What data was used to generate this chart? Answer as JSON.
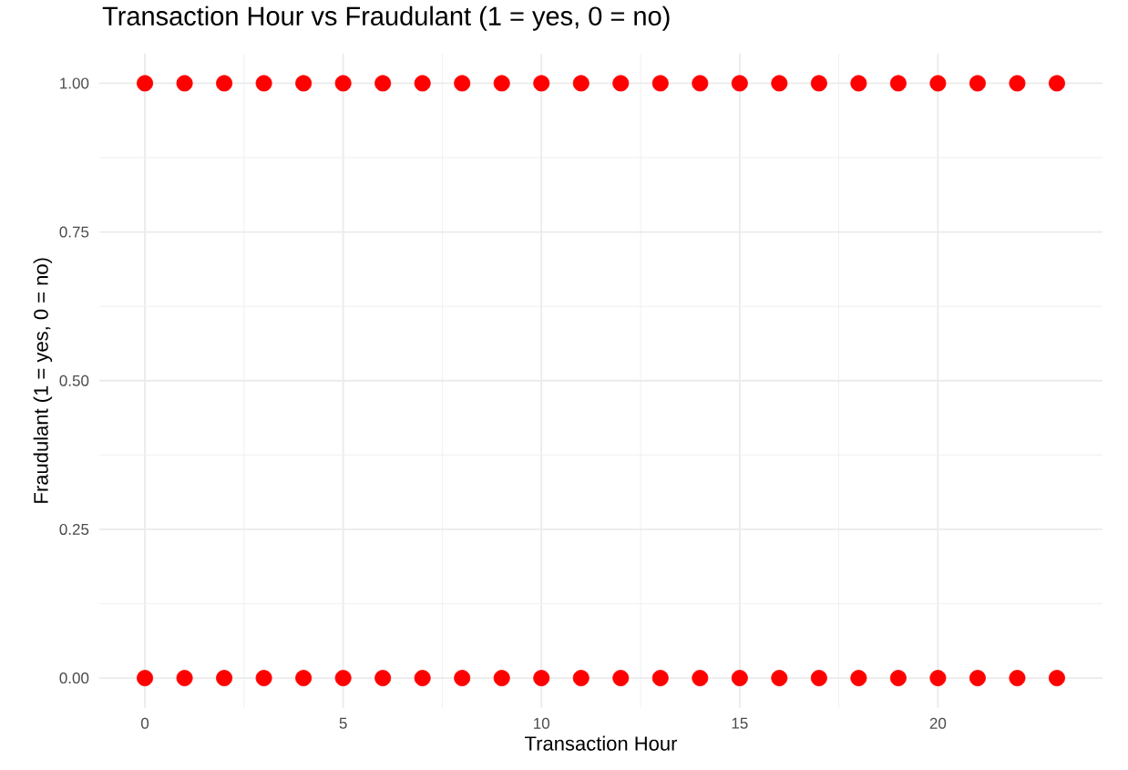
{
  "chart_data": {
    "type": "scatter",
    "title": "Transaction Hour vs Fraudulant (1 = yes, 0 = no)",
    "xlabel": "Transaction Hour",
    "ylabel": "Fraudulant (1 = yes, 0 = no)",
    "series": [
      {
        "color": "#ff0000",
        "x": [
          0,
          1,
          2,
          3,
          4,
          5,
          6,
          7,
          8,
          9,
          10,
          11,
          12,
          13,
          14,
          15,
          16,
          17,
          18,
          19,
          20,
          21,
          22,
          23,
          0,
          1,
          2,
          3,
          4,
          5,
          6,
          7,
          8,
          9,
          10,
          11,
          12,
          13,
          14,
          15,
          16,
          17,
          18,
          19,
          20,
          21,
          22,
          23
        ],
        "values": [
          1,
          1,
          1,
          1,
          1,
          1,
          1,
          1,
          1,
          1,
          1,
          1,
          1,
          1,
          1,
          1,
          1,
          1,
          1,
          1,
          1,
          1,
          1,
          1,
          0,
          0,
          0,
          0,
          0,
          0,
          0,
          0,
          0,
          0,
          0,
          0,
          0,
          0,
          0,
          0,
          0,
          0,
          0,
          0,
          0,
          0,
          0,
          0
        ]
      }
    ],
    "xlim": [
      -1.15,
      24.15
    ],
    "ylim": [
      -0.05,
      1.05
    ],
    "xticks": [
      0,
      5,
      10,
      15,
      20
    ],
    "yticks": [
      {
        "value": 0,
        "label": "0.00"
      },
      {
        "value": 0.25,
        "label": "0.25"
      },
      {
        "value": 0.5,
        "label": "0.50"
      },
      {
        "value": 0.75,
        "label": "0.75"
      },
      {
        "value": 1,
        "label": "1.00"
      }
    ],
    "grid": true,
    "marker": "circle"
  }
}
